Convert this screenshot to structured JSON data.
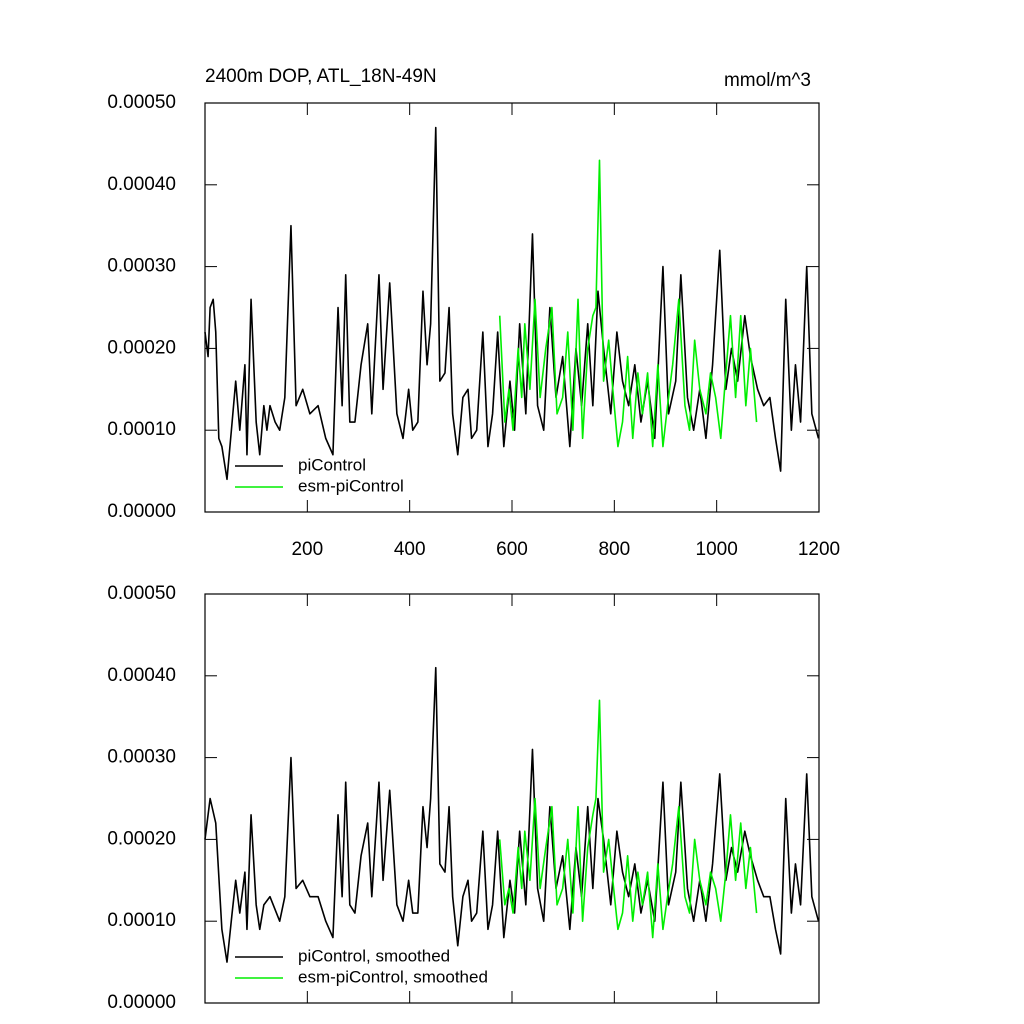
{
  "chart_data": [
    {
      "type": "line",
      "title": "2400m DOP, ATL_18N-49N",
      "units": "mmol/m^3",
      "xlim": [
        0,
        1200
      ],
      "xticks": [
        200,
        400,
        600,
        800,
        1000,
        1200
      ],
      "ylim": [
        0,
        0.0005
      ],
      "yticks": [
        {
          "value": 0,
          "label": "0.00000"
        },
        {
          "value": 0.0001,
          "label": "0.00010"
        },
        {
          "value": 0.0002,
          "label": "0.00020"
        },
        {
          "value": 0.0003,
          "label": "0.00030"
        },
        {
          "value": 0.0004,
          "label": "0.00040"
        },
        {
          "value": 0.0005,
          "label": "0.00050"
        }
      ],
      "legend": "lower left",
      "series": [
        {
          "name": "piControl",
          "color": "#000000",
          "x": [
            0,
            6,
            10,
            16,
            21,
            27,
            33,
            43,
            53,
            60,
            68,
            78,
            82,
            90,
            100,
            107,
            115,
            121,
            127,
            137,
            146,
            156,
            168,
            178,
            191,
            205,
            221,
            236,
            250,
            260,
            268,
            275,
            283,
            293,
            305,
            318,
            326,
            340,
            348,
            361,
            375,
            387,
            398,
            406,
            416,
            426,
            434,
            441,
            451,
            459,
            469,
            477,
            484,
            494,
            504,
            514,
            521,
            531,
            543,
            553,
            562,
            572,
            584,
            596,
            605,
            615,
            627,
            640,
            650,
            662,
            674,
            686,
            699,
            713,
            725,
            736,
            748,
            758,
            768,
            779,
            793,
            805,
            816,
            828,
            840,
            852,
            865,
            879,
            895,
            906,
            920,
            930,
            943,
            955,
            967,
            979,
            992,
            1006,
            1018,
            1029,
            1041,
            1055,
            1066,
            1080,
            1092,
            1104,
            1115,
            1125,
            1135,
            1146,
            1154,
            1164,
            1176,
            1186,
            1199
          ],
          "values": [
            0.00022,
            0.00019,
            0.00025,
            0.00026,
            0.00022,
            9e-05,
            8e-05,
            4e-05,
            0.00011,
            0.00016,
            0.0001,
            0.00018,
            7e-05,
            0.00026,
            0.00011,
            7e-05,
            0.00013,
            0.0001,
            0.00013,
            0.00011,
            0.0001,
            0.00014,
            0.00035,
            0.00013,
            0.00015,
            0.00012,
            0.00013,
            9e-05,
            7e-05,
            0.00025,
            0.00013,
            0.00029,
            0.00011,
            0.00011,
            0.00018,
            0.00023,
            0.00012,
            0.00029,
            0.00015,
            0.00028,
            0.00012,
            9e-05,
            0.00015,
            0.0001,
            0.00011,
            0.00027,
            0.00018,
            0.00023,
            0.00047,
            0.00016,
            0.00017,
            0.00025,
            0.00012,
            7e-05,
            0.00014,
            0.00015,
            9e-05,
            0.0001,
            0.00022,
            8e-05,
            0.00012,
            0.00022,
            8e-05,
            0.00016,
            0.0001,
            0.00023,
            0.00012,
            0.00034,
            0.00013,
            0.0001,
            0.00025,
            0.00014,
            0.00019,
            8e-05,
            0.0002,
            0.00013,
            0.00023,
            0.00013,
            0.00027,
            0.0002,
            0.00012,
            0.00022,
            0.00016,
            0.00013,
            0.00018,
            0.00011,
            0.00016,
            9e-05,
            0.0003,
            0.00012,
            0.00016,
            0.00029,
            0.00014,
            0.0001,
            0.00015,
            9e-05,
            0.00018,
            0.00032,
            0.00015,
            0.0002,
            0.00016,
            0.00024,
            0.00019,
            0.00015,
            0.00013,
            0.00014,
            9e-05,
            5e-05,
            0.00026,
            0.0001,
            0.00018,
            0.00011,
            0.0003,
            0.00012,
            9e-05
          ]
        },
        {
          "name": "esm-piControl",
          "color": "#00ee00",
          "x": [
            576,
            586,
            594,
            602,
            612,
            619,
            625,
            635,
            645,
            655,
            666,
            678,
            688,
            699,
            709,
            719,
            729,
            738,
            748,
            758,
            764,
            771,
            779,
            789,
            797,
            807,
            816,
            826,
            836,
            846,
            855,
            865,
            875,
            885,
            895,
            904,
            914,
            926,
            938,
            947,
            957,
            967,
            979,
            988,
            998,
            1008,
            1018,
            1027,
            1037,
            1047,
            1057,
            1066,
            1078
          ],
          "values": [
            0.00024,
            0.00011,
            0.00015,
            0.0001,
            0.0002,
            0.00014,
            0.00023,
            0.00015,
            0.00026,
            0.00014,
            0.0002,
            0.00025,
            0.00012,
            0.00014,
            0.00022,
            0.0001,
            0.00026,
            9e-05,
            0.0002,
            0.00024,
            0.00025,
            0.00043,
            0.00016,
            0.00021,
            0.00015,
            8e-05,
            0.00011,
            0.00019,
            9e-05,
            0.00017,
            0.00012,
            0.00017,
            8e-05,
            0.00018,
            8e-05,
            0.00013,
            0.00018,
            0.00026,
            0.00013,
            0.0001,
            0.00021,
            0.00015,
            0.00012,
            0.00017,
            0.00014,
            9e-05,
            0.00017,
            0.00024,
            0.00014,
            0.00024,
            0.00013,
            0.0002,
            0.00011
          ]
        }
      ]
    },
    {
      "type": "line",
      "xlim": [
        0,
        1200
      ],
      "xticks": [
        200,
        400,
        600,
        800,
        1000,
        1200
      ],
      "ylim": [
        0,
        0.0005
      ],
      "yticks": [
        {
          "value": 0,
          "label": "0.00000"
        },
        {
          "value": 0.0001,
          "label": "0.00010"
        },
        {
          "value": 0.0002,
          "label": "0.00020"
        },
        {
          "value": 0.0003,
          "label": "0.00030"
        },
        {
          "value": 0.0004,
          "label": "0.00040"
        },
        {
          "value": 0.0005,
          "label": "0.00050"
        }
      ],
      "legend": "lower left",
      "series": [
        {
          "name": "piControl, smoothed",
          "color": "#000000",
          "x": [
            0,
            10,
            21,
            33,
            43,
            53,
            60,
            68,
            78,
            82,
            90,
            100,
            107,
            115,
            127,
            146,
            156,
            168,
            178,
            191,
            205,
            221,
            236,
            250,
            260,
            268,
            275,
            283,
            293,
            305,
            318,
            326,
            340,
            348,
            361,
            375,
            387,
            398,
            406,
            416,
            426,
            434,
            441,
            451,
            459,
            469,
            477,
            484,
            494,
            504,
            514,
            521,
            531,
            543,
            553,
            562,
            572,
            584,
            596,
            605,
            615,
            627,
            640,
            650,
            662,
            674,
            686,
            699,
            713,
            725,
            736,
            748,
            758,
            768,
            779,
            793,
            805,
            816,
            828,
            840,
            852,
            865,
            879,
            895,
            906,
            920,
            930,
            943,
            955,
            967,
            979,
            992,
            1006,
            1018,
            1029,
            1041,
            1055,
            1066,
            1080,
            1092,
            1104,
            1115,
            1125,
            1135,
            1146,
            1154,
            1164,
            1176,
            1186,
            1199
          ],
          "values": [
            0.0002,
            0.00025,
            0.00022,
            9e-05,
            5e-05,
            0.00011,
            0.00015,
            0.00011,
            0.00016,
            9e-05,
            0.00023,
            0.00012,
            9e-05,
            0.00012,
            0.00013,
            0.0001,
            0.00013,
            0.0003,
            0.00014,
            0.00015,
            0.00013,
            0.00013,
            0.0001,
            8e-05,
            0.00023,
            0.00013,
            0.00027,
            0.00012,
            0.00011,
            0.00018,
            0.00022,
            0.00013,
            0.00027,
            0.00015,
            0.00026,
            0.00012,
            0.0001,
            0.00015,
            0.00011,
            0.00011,
            0.00024,
            0.00019,
            0.00025,
            0.00041,
            0.00017,
            0.00016,
            0.00024,
            0.00013,
            7e-05,
            0.00013,
            0.00015,
            0.0001,
            0.00011,
            0.00021,
            9e-05,
            0.00012,
            0.00021,
            8e-05,
            0.00015,
            0.00011,
            0.00021,
            0.00012,
            0.00031,
            0.00014,
            0.0001,
            0.00024,
            0.00014,
            0.00018,
            9e-05,
            0.00019,
            0.00013,
            0.00024,
            0.00014,
            0.00025,
            0.0002,
            0.00012,
            0.00021,
            0.00016,
            0.00013,
            0.00017,
            0.00011,
            0.00015,
            0.0001,
            0.00027,
            0.00012,
            0.00016,
            0.00027,
            0.00014,
            0.0001,
            0.00015,
            0.0001,
            0.00017,
            0.00028,
            0.00015,
            0.00019,
            0.00016,
            0.00021,
            0.00018,
            0.00015,
            0.00013,
            0.00013,
            9e-05,
            6e-05,
            0.00025,
            0.00011,
            0.00017,
            0.00012,
            0.00028,
            0.00013,
            0.0001
          ]
        },
        {
          "name": "esm-piControl, smoothed",
          "color": "#00ee00",
          "x": [
            576,
            586,
            594,
            602,
            612,
            619,
            625,
            635,
            645,
            655,
            666,
            678,
            688,
            699,
            709,
            719,
            729,
            738,
            748,
            758,
            764,
            771,
            779,
            789,
            797,
            807,
            816,
            826,
            836,
            846,
            855,
            865,
            875,
            885,
            895,
            904,
            914,
            926,
            938,
            947,
            957,
            967,
            979,
            988,
            998,
            1008,
            1018,
            1027,
            1037,
            1047,
            1057,
            1066,
            1078
          ],
          "values": [
            0.0002,
            0.00012,
            0.00014,
            0.00011,
            0.00019,
            0.00014,
            0.00021,
            0.00015,
            0.00025,
            0.00014,
            0.00019,
            0.00024,
            0.00012,
            0.00014,
            0.0002,
            0.00011,
            0.00024,
            0.0001,
            0.00019,
            0.00023,
            0.00025,
            0.00037,
            0.00016,
            0.0002,
            0.00015,
            9e-05,
            0.00011,
            0.00018,
            0.0001,
            0.00016,
            0.00012,
            0.00016,
            8e-05,
            0.00017,
            9e-05,
            0.00013,
            0.00017,
            0.00024,
            0.00013,
            0.00011,
            0.0002,
            0.00015,
            0.00012,
            0.00016,
            0.00014,
            0.0001,
            0.00016,
            0.00023,
            0.00015,
            0.00022,
            0.00014,
            0.00019,
            0.00011
          ]
        }
      ]
    }
  ]
}
